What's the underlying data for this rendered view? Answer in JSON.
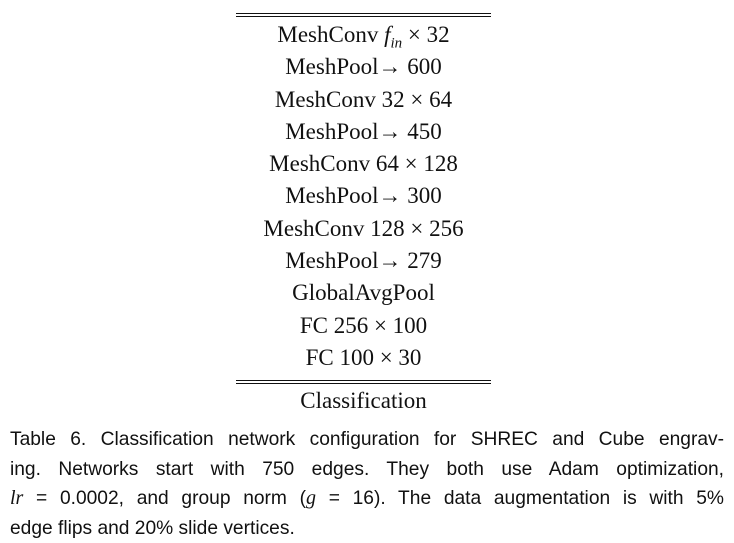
{
  "table": {
    "rows": [
      {
        "text": "MeshConv ",
        "italic": "f",
        "sub": "in",
        "rest": " × 32"
      },
      {
        "text": "MeshPool→ 600"
      },
      {
        "text": "MeshConv 32 × 64"
      },
      {
        "text": "MeshPool→ 450"
      },
      {
        "text": "MeshConv 64 × 128"
      },
      {
        "text": "MeshPool→ 300"
      },
      {
        "text": "MeshConv 128 × 256"
      },
      {
        "text": "MeshPool→ 279"
      },
      {
        "text": "GlobalAvgPool"
      },
      {
        "text": "FC 256 × 100"
      },
      {
        "text": "FC 100 × 30"
      }
    ],
    "footer": "Classification"
  },
  "caption": {
    "line1": "Table 6.  Classification network configuration for SHREC and Cube engrav-",
    "line2": "ing. Networks start with 750 edges. They both use Adam optimization,",
    "line3_lr": "lr",
    "line3_eq": " = 0.0002, and group norm (",
    "line3_g": "g",
    "line3_eq2": " = 16). The data augmentation is with 5%",
    "line4": "edge flips and 20% slide vertices."
  }
}
